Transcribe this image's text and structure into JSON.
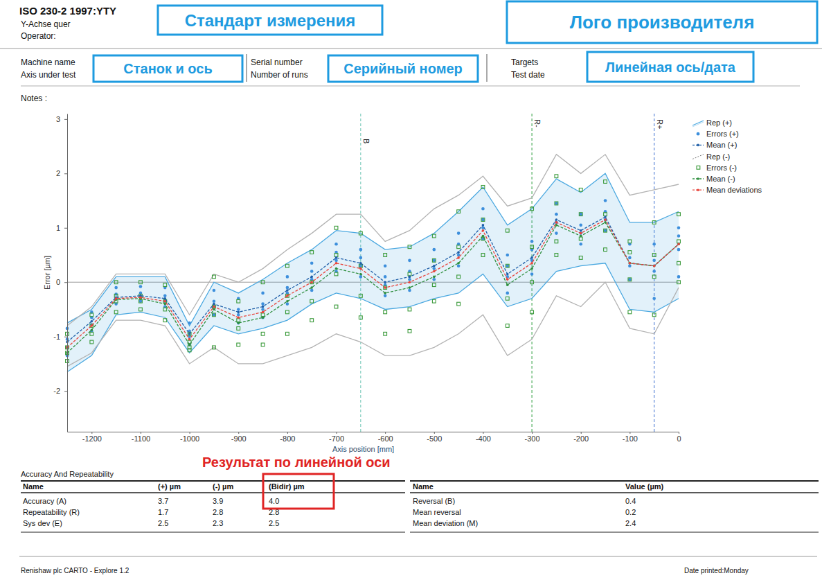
{
  "header": {
    "standard": "ISO 230-2 1997:YTY",
    "axis_name": "Y-Achse quer",
    "operator": "Operator:",
    "fields": [
      [
        "Machine name",
        "Axis under test"
      ],
      [
        "Serial number",
        "Number of runs"
      ],
      [
        "Targets",
        "Test date"
      ]
    ],
    "notes": "Notes :"
  },
  "annotations": {
    "boxes": [
      {
        "text": "Стандарт измерения",
        "color": "#1e9be0"
      },
      {
        "text": "Лого производителя",
        "color": "#1e9be0"
      },
      {
        "text": "Станок и ось",
        "color": "#1e9be0"
      },
      {
        "text": "Серийный номер",
        "color": "#1e9be0"
      },
      {
        "text": "Линейная ось/дата",
        "color": "#1e9be0"
      }
    ],
    "result_label": {
      "text": "Результат по линейной оси",
      "color": "#e02424"
    }
  },
  "chart_data": {
    "type": "line",
    "x_label": "Axis position [mm]",
    "y_label": "Error [µm]",
    "x": [
      -1250,
      -1200,
      -1150,
      -1100,
      -1050,
      -1000,
      -950,
      -900,
      -850,
      -800,
      -750,
      -700,
      -650,
      -600,
      -550,
      -500,
      -450,
      -400,
      -350,
      -300,
      -250,
      -200,
      -150,
      -100,
      -50,
      0
    ],
    "xlim": [
      -1250,
      0
    ],
    "xticks": [
      -1200,
      -1100,
      -1000,
      -900,
      -800,
      -700,
      -600,
      -500,
      -400,
      -300,
      -200,
      -100,
      0
    ],
    "ylim": [
      -2.75,
      3.1
    ],
    "yticks": [
      -2,
      -1,
      0,
      1,
      2,
      3
    ],
    "grid": false,
    "legend": "right",
    "reference_lines": [
      {
        "axis": "x",
        "value": -650,
        "label": "B",
        "color": "#66c2b0",
        "line_style": "dashed"
      },
      {
        "axis": "x",
        "value": -300,
        "label": "R-",
        "color": "#2e9e3e",
        "line_style": "dashed"
      },
      {
        "axis": "x",
        "value": -50,
        "label": "R+",
        "color": "#3b6fd0",
        "line_style": "dashed"
      },
      {
        "axis": "y",
        "value": 0,
        "color": "#9a9a9a",
        "line_style": "solid"
      }
    ],
    "series": [
      {
        "name": "Rep (+)",
        "type": "area",
        "color": "#4aa8e0",
        "line_style": "solid",
        "upper": [
          -0.75,
          -0.5,
          0.1,
          0.1,
          0.1,
          -0.8,
          0.0,
          -0.2,
          0.05,
          0.35,
          0.6,
          0.95,
          0.9,
          0.6,
          0.65,
          0.9,
          1.3,
          1.75,
          1.05,
          1.35,
          1.9,
          1.65,
          2.0,
          1.1,
          1.1,
          1.3
        ],
        "lower": [
          -1.65,
          -1.35,
          -0.6,
          -0.55,
          -0.65,
          -1.3,
          -0.8,
          -0.95,
          -0.85,
          -0.7,
          -0.4,
          -0.2,
          -0.3,
          -0.5,
          -0.45,
          -0.3,
          -0.2,
          0.15,
          -0.45,
          -0.3,
          0.2,
          0.3,
          0.35,
          -0.5,
          -0.55,
          -0.3
        ]
      },
      {
        "name": "Errors (+)",
        "type": "scatter",
        "color": "#3d8fdc",
        "marker": "circle",
        "values": [
          [
            -1.35,
            -1.2,
            -1.05,
            -0.85
          ],
          [
            -0.9,
            -0.78,
            -0.65,
            -0.55
          ],
          [
            -0.4,
            -0.3,
            -0.22,
            -0.1
          ],
          [
            -0.35,
            -0.28,
            -0.2,
            -0.08
          ],
          [
            -0.45,
            -0.35,
            -0.25,
            -0.1
          ],
          [
            -1.15,
            -1.0,
            -0.9,
            -0.75
          ],
          [
            -0.6,
            -0.45,
            -0.35,
            -0.15
          ],
          [
            -0.75,
            -0.6,
            -0.5,
            -0.3
          ],
          [
            -0.65,
            -0.5,
            -0.4,
            -0.2
          ],
          [
            -0.4,
            -0.2,
            -0.1,
            0.1
          ],
          [
            -0.15,
            0.05,
            0.2,
            0.35
          ],
          [
            0.2,
            0.4,
            0.55,
            0.7
          ],
          [
            0.1,
            0.3,
            0.45,
            0.6
          ],
          [
            -0.25,
            -0.05,
            0.1,
            0.3
          ],
          [
            -0.15,
            0.05,
            0.2,
            0.4
          ],
          [
            0.05,
            0.25,
            0.4,
            0.6
          ],
          [
            0.3,
            0.5,
            0.7,
            0.9
          ],
          [
            0.8,
            1.0,
            1.15,
            1.35
          ],
          [
            -0.2,
            0.1,
            0.3,
            0.5
          ],
          [
            0.15,
            0.4,
            0.6,
            0.75
          ],
          [
            0.9,
            1.1,
            1.25,
            1.45
          ],
          [
            0.7,
            0.9,
            1.05,
            1.25
          ],
          [
            0.95,
            1.15,
            1.3,
            1.5
          ],
          [
            0.05,
            0.3,
            0.45,
            0.7
          ],
          [
            -0.3,
            0.2,
            0.4,
            0.7
          ],
          [
            0.1,
            0.6,
            0.85,
            1.0
          ]
        ]
      },
      {
        "name": "Mean (+)",
        "type": "line",
        "color": "#1f5fa8",
        "line_style": "dashed",
        "marker": "circle",
        "values": [
          -1.1,
          -0.72,
          -0.28,
          -0.25,
          -0.3,
          -0.95,
          -0.4,
          -0.55,
          -0.45,
          -0.15,
          0.1,
          0.45,
          0.35,
          0.0,
          0.1,
          0.3,
          0.55,
          1.05,
          0.15,
          0.45,
          1.15,
          0.95,
          1.2,
          0.35,
          0.3,
          0.7
        ]
      },
      {
        "name": "Rep (-)",
        "type": "band",
        "color": "#b3b3b3",
        "line_style": "solid",
        "upper": [
          -0.8,
          -0.45,
          0.15,
          0.15,
          0.15,
          -0.6,
          0.15,
          0.0,
          0.25,
          0.6,
          0.9,
          1.25,
          1.25,
          0.75,
          0.95,
          1.35,
          1.6,
          1.95,
          1.4,
          1.55,
          2.35,
          2.0,
          2.35,
          1.6,
          1.7,
          1.8
        ],
        "lower": [
          -1.55,
          -1.3,
          -0.7,
          -0.7,
          -0.8,
          -1.5,
          -1.2,
          -1.5,
          -1.5,
          -1.35,
          -1.2,
          -0.95,
          -1.1,
          -1.35,
          -1.35,
          -1.2,
          -0.95,
          -0.6,
          -1.35,
          -1.05,
          -0.25,
          -0.45,
          0.0,
          -0.85,
          -0.95,
          -0.1
        ]
      },
      {
        "name": "Errors (-)",
        "type": "scatter",
        "color": "#3a9a3a",
        "marker": "square",
        "values": [
          [
            -1.45,
            -1.3,
            -1.2,
            -0.95
          ],
          [
            -1.1,
            -0.95,
            -0.8,
            -0.6
          ],
          [
            -0.55,
            -0.35,
            -0.25,
            0.0
          ],
          [
            -0.5,
            -0.35,
            -0.25,
            0.0
          ],
          [
            -0.7,
            -0.5,
            -0.35,
            -0.05
          ],
          [
            -1.25,
            -1.2,
            -1.1,
            -0.95
          ],
          [
            -1.2,
            -0.6,
            -0.45,
            0.1
          ],
          [
            -1.15,
            -0.85,
            -0.7,
            -0.35
          ],
          [
            -1.15,
            -0.95,
            -0.6,
            0.0
          ],
          [
            -0.95,
            -0.55,
            -0.25,
            0.3
          ],
          [
            -0.7,
            -0.35,
            0.0,
            0.55
          ],
          [
            -0.45,
            0.15,
            0.5,
            1.0
          ],
          [
            -0.65,
            -0.25,
            0.3,
            0.9
          ],
          [
            -0.95,
            -0.55,
            -0.1,
            0.5
          ],
          [
            -0.9,
            -0.5,
            0.15,
            0.65
          ],
          [
            -0.35,
            -0.05,
            0.4,
            0.85
          ],
          [
            -0.4,
            0.1,
            0.65,
            1.3
          ],
          [
            0.5,
            0.8,
            1.15,
            1.75
          ],
          [
            -0.8,
            -0.3,
            0.3,
            0.95
          ],
          [
            -0.55,
            0.0,
            0.65,
            1.35
          ],
          [
            0.5,
            0.75,
            1.45,
            1.95
          ],
          [
            0.45,
            0.8,
            1.25,
            1.7
          ],
          [
            0.6,
            0.95,
            1.25,
            1.85
          ],
          [
            -0.55,
            0.05,
            0.55,
            0.75
          ],
          [
            -0.6,
            0.1,
            0.5,
            1.1
          ],
          [
            0.0,
            0.35,
            0.75,
            1.25
          ]
        ]
      },
      {
        "name": "Mean (-)",
        "type": "line",
        "color": "#2f8f3f",
        "line_style": "dashed",
        "marker": "circle",
        "values": [
          -1.3,
          -0.88,
          -0.32,
          -0.3,
          -0.4,
          -1.15,
          -0.5,
          -0.75,
          -0.65,
          -0.35,
          -0.1,
          0.25,
          0.15,
          -0.2,
          -0.1,
          0.1,
          0.35,
          0.85,
          -0.05,
          0.25,
          1.05,
          0.85,
          1.1,
          0.35,
          0.3,
          0.7
        ]
      },
      {
        "name": "Mean deviations",
        "type": "line",
        "color": "#e8453c",
        "line_style": "dashed",
        "marker": "circle",
        "values": [
          -1.2,
          -0.8,
          -0.3,
          -0.28,
          -0.35,
          -1.05,
          -0.45,
          -0.65,
          -0.55,
          -0.25,
          0.0,
          0.35,
          0.25,
          -0.1,
          0.0,
          0.2,
          0.45,
          0.95,
          0.05,
          0.35,
          1.1,
          0.9,
          1.15,
          0.35,
          0.3,
          0.7
        ]
      }
    ]
  },
  "tables": {
    "accuracy": {
      "title": "Accuracy And Repeatability",
      "columns": [
        "Name",
        "(+) µm",
        "(-) µm",
        "(Bidir) µm"
      ],
      "rows": [
        [
          "Accuracy (A)",
          "3.7",
          "3.9",
          "4.0"
        ],
        [
          "Repeatability (R)",
          "1.7",
          "2.8",
          "2.8"
        ],
        [
          "Sys dev (E)",
          "2.5",
          "2.3",
          "2.5"
        ]
      ]
    },
    "reversal": {
      "columns": [
        "Name",
        "Value (µm)"
      ],
      "rows": [
        [
          "Reversal (B)",
          "0.4"
        ],
        [
          "Mean reversal",
          "0.2"
        ],
        [
          "Mean deviation (M)",
          "2.4"
        ]
      ]
    }
  },
  "footer": {
    "left": "Renishaw plc CARTO - Explore 1.2",
    "right": "Date printed:Monday"
  }
}
